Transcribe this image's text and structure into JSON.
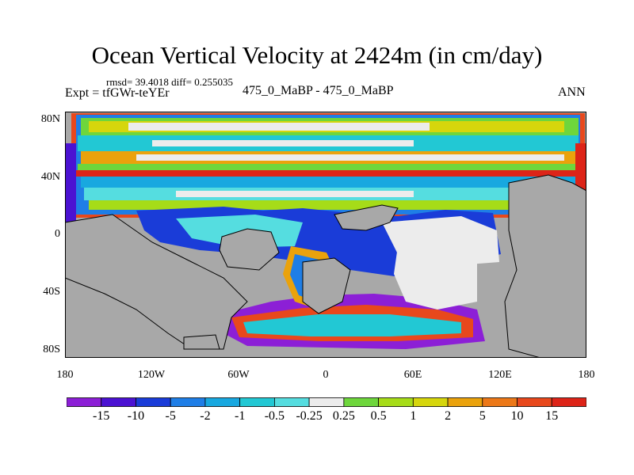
{
  "title": "Ocean Vertical Velocity at 2424m (in cm/day)",
  "stats": "rmsd= 39.4018 diff= 0.255035",
  "experiment": "Expt = tfGWr-teYEr",
  "comparison": "475_0_MaBP - 475_0_MaBP",
  "season": "ANN",
  "y_axis_labels": [
    "80N",
    "40N",
    "0",
    "40S",
    "80S"
  ],
  "x_axis_labels": [
    "180",
    "120W",
    "60W",
    "0",
    "60E",
    "120E",
    "180"
  ],
  "colorbar": {
    "labels": [
      "-15",
      "-10",
      "-5",
      "-2",
      "-1",
      "-0.5",
      "-0.25",
      "0.25",
      "0.5",
      "1",
      "2",
      "5",
      "10",
      "15"
    ],
    "colors": [
      "#8c1fd6",
      "#4b12d2",
      "#1a3cd8",
      "#1f7ee6",
      "#18a8e0",
      "#22c8d4",
      "#55dde0",
      "#ececec",
      "#6ed63c",
      "#a6dc18",
      "#d6d60c",
      "#eaa20c",
      "#ec7818",
      "#e8481c",
      "#dd2418"
    ]
  },
  "colors": {
    "land": "#a8a8a8",
    "frame": "#000000"
  }
}
